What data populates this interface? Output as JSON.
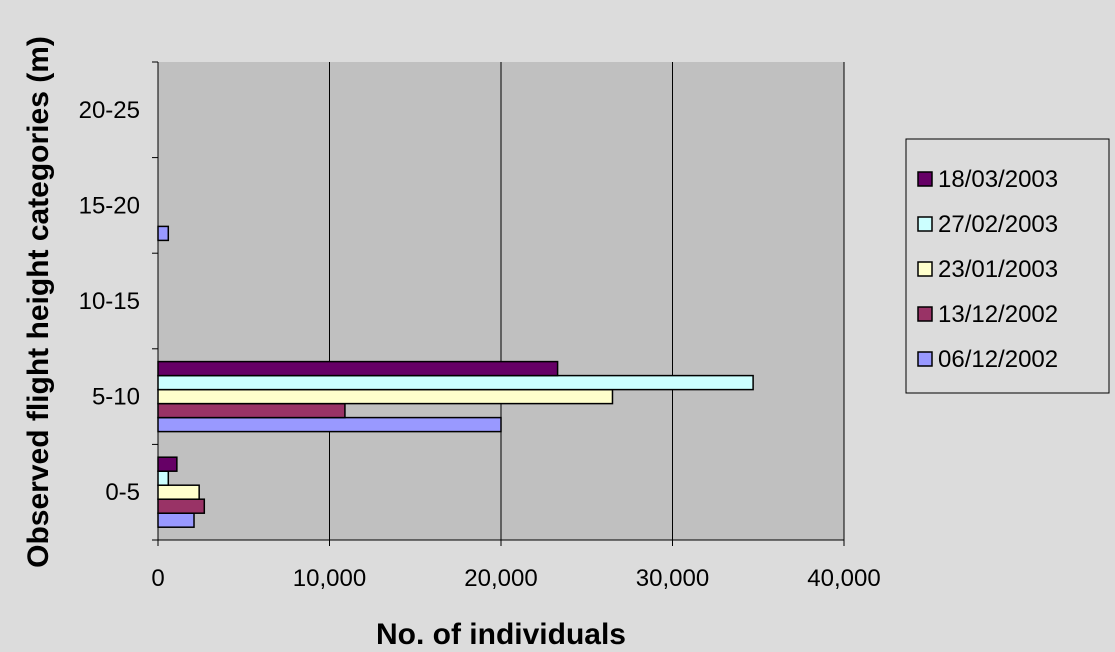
{
  "chart_data": {
    "type": "bar",
    "orientation": "horizontal",
    "xlabel": "No. of individuals",
    "ylabel": "Observed flight height categories (m)",
    "categories": [
      "0-5",
      "5-10",
      "10-15",
      "15-20",
      "20-25"
    ],
    "xlim": [
      0,
      40000
    ],
    "x_ticks": [
      "0",
      "10,000",
      "20,000",
      "30,000",
      "40,000"
    ],
    "x_tick_values": [
      0,
      10000,
      20000,
      30000,
      40000
    ],
    "grid": "vertical",
    "legend_position": "right",
    "series": [
      {
        "name": "06/12/2002",
        "color": "#9999ff",
        "values": [
          2100,
          20000,
          0,
          600,
          0
        ]
      },
      {
        "name": "13/12/2002",
        "color": "#993366",
        "values": [
          2700,
          10900,
          0,
          0,
          0
        ]
      },
      {
        "name": "23/01/2003",
        "color": "#ffffcc",
        "values": [
          2400,
          26500,
          0,
          0,
          0
        ]
      },
      {
        "name": "27/02/2003",
        "color": "#ccffff",
        "values": [
          600,
          34700,
          0,
          0,
          0
        ]
      },
      {
        "name": "18/03/2003",
        "color": "#660066",
        "values": [
          1100,
          23300,
          0,
          0,
          0
        ]
      }
    ],
    "legend_order": [
      "18/03/2003",
      "27/02/2003",
      "23/01/2003",
      "13/12/2002",
      "06/12/2002"
    ],
    "colors": {
      "background": "#dcdcdc",
      "plot_area": "#c0c0c0",
      "gridline": "#000000"
    }
  }
}
